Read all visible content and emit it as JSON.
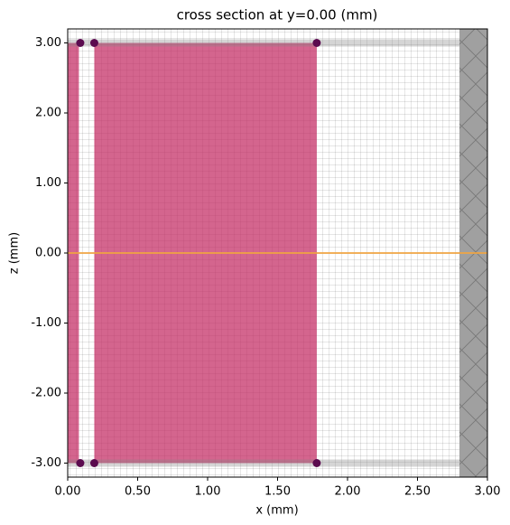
{
  "chart_data": {
    "type": "cross-section",
    "title": "cross section at y=0.00 (mm)",
    "xlabel": "x (mm)",
    "ylabel": "z (mm)",
    "xlim": [
      0,
      3
    ],
    "ylim": [
      -3.2,
      3.2
    ],
    "xticks": [
      {
        "value": 0,
        "label": "0.00"
      },
      {
        "value": 0.5,
        "label": "0.50"
      },
      {
        "value": 1,
        "label": "1.00"
      },
      {
        "value": 1.5,
        "label": "1.50"
      },
      {
        "value": 2,
        "label": "2.00"
      },
      {
        "value": 2.5,
        "label": "2.50"
      },
      {
        "value": 3,
        "label": "3.00"
      }
    ],
    "yticks": [
      {
        "value": -3,
        "label": "-3.00"
      },
      {
        "value": -2,
        "label": "-2.00"
      },
      {
        "value": -1,
        "label": "-1.00"
      },
      {
        "value": 0,
        "label": "0.00"
      },
      {
        "value": 1,
        "label": "1.00"
      },
      {
        "value": 2,
        "label": "2.00"
      },
      {
        "value": 3,
        "label": "3.00"
      }
    ],
    "structures": [
      {
        "x": [
          0,
          0.08
        ],
        "z": [
          -3,
          3
        ],
        "color": "#c42a62"
      },
      {
        "x": [
          0.19,
          1.78
        ],
        "z": [
          -3,
          3
        ],
        "color": "#c42a62"
      }
    ],
    "pml": {
      "x": [
        2.8,
        3
      ],
      "color": "#a0a0a0"
    },
    "source": {
      "z": 0,
      "color": "#f2a541"
    },
    "points": {
      "x": [
        0.09,
        0.19,
        1.78,
        0.09,
        0.19,
        1.78
      ],
      "z": [
        3,
        3,
        3,
        -3,
        -3,
        -3
      ],
      "color": "#5b0b4f"
    }
  }
}
